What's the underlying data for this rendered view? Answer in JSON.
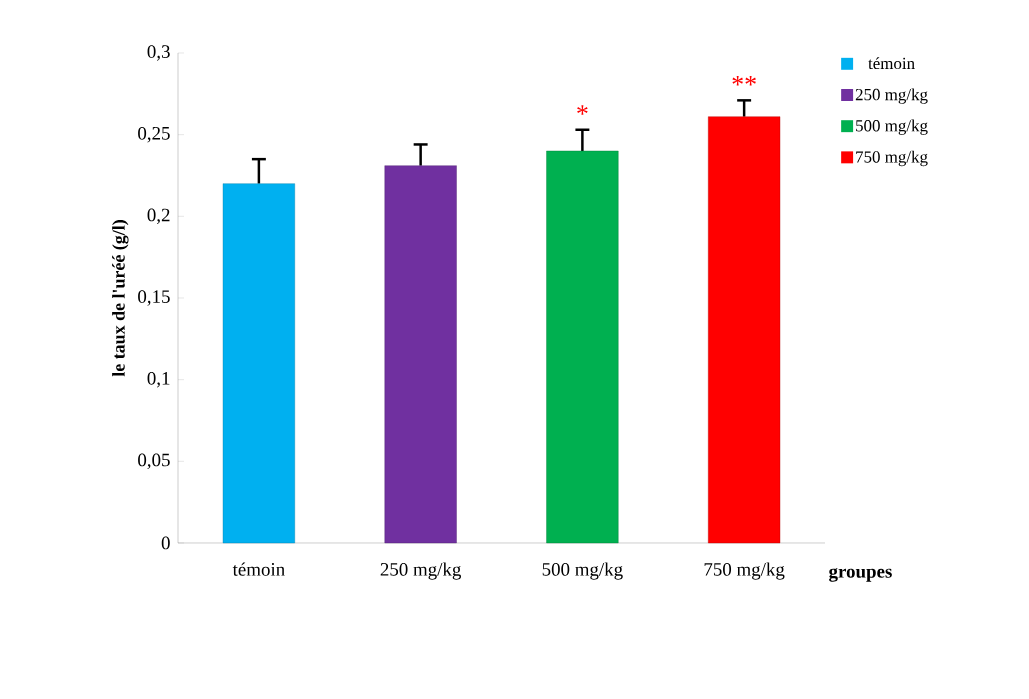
{
  "chart_data": {
    "type": "bar",
    "ylabel": "le taux de l'uréé (g/l)",
    "xlabel": "groupes",
    "categories": [
      "témoin",
      "250 mg/kg",
      "500 mg/kg",
      "750 mg/kg"
    ],
    "series": [
      {
        "name": "témoin",
        "color": "#00b0f0",
        "values": [
          0.22,
          null,
          null,
          null
        ],
        "errors": [
          [
            0.22,
            0.235
          ],
          null,
          null,
          null
        ]
      },
      {
        "name": "250 mg/kg",
        "color": "#7030a0",
        "values": [
          null,
          0.231,
          null,
          null
        ],
        "errors": [
          null,
          [
            0.231,
            0.244
          ],
          null,
          null
        ]
      },
      {
        "name": "500 mg/kg",
        "color": "#00b050",
        "values": [
          null,
          null,
          0.24,
          null
        ],
        "errors": [
          null,
          null,
          [
            0.24,
            0.253
          ],
          null
        ]
      },
      {
        "name": "750 mg/kg",
        "color": "#ff0000",
        "values": [
          null,
          null,
          null,
          0.261
        ],
        "errors": [
          null,
          null,
          null,
          [
            0.261,
            0.271
          ]
        ]
      }
    ],
    "ylim": [
      0,
      0.3
    ],
    "yticks": [
      0,
      {
        "value": 0.05,
        "label": "0,05"
      },
      {
        "value": 0.1,
        "label": "0,1"
      },
      {
        "value": 0.15,
        "label": "0,15"
      },
      {
        "value": 0.2,
        "label": "0,2"
      },
      {
        "value": 0.25,
        "label": "0,25"
      },
      {
        "value": 0.3,
        "label": "0,3"
      }
    ],
    "annotations": [
      "*",
      "**"
    ],
    "legend": "right",
    "grid": false
  }
}
